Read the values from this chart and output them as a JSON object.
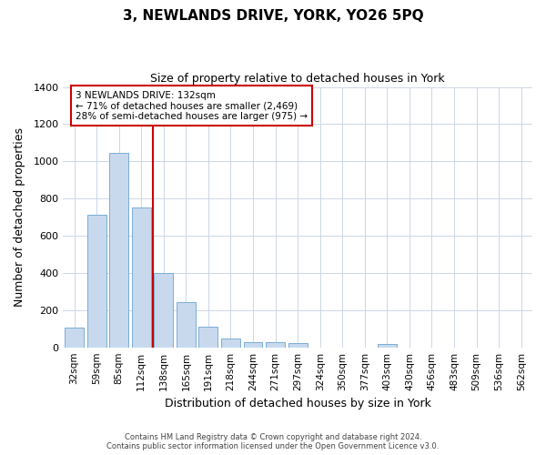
{
  "title": "3, NEWLANDS DRIVE, YORK, YO26 5PQ",
  "subtitle": "Size of property relative to detached houses in York",
  "xlabel": "Distribution of detached houses by size in York",
  "ylabel": "Number of detached properties",
  "bar_color": "#c8d9ee",
  "bar_edge_color": "#7aadd4",
  "categories": [
    "32sqm",
    "59sqm",
    "85sqm",
    "112sqm",
    "138sqm",
    "165sqm",
    "191sqm",
    "218sqm",
    "244sqm",
    "271sqm",
    "297sqm",
    "324sqm",
    "350sqm",
    "377sqm",
    "403sqm",
    "430sqm",
    "456sqm",
    "483sqm",
    "509sqm",
    "536sqm",
    "562sqm"
  ],
  "values": [
    105,
    715,
    1045,
    750,
    400,
    245,
    110,
    48,
    28,
    28,
    25,
    0,
    0,
    0,
    18,
    0,
    0,
    0,
    0,
    0,
    0
  ],
  "vline_x_idx": 4,
  "vline_color": "#cc0000",
  "annotation_line1": "3 NEWLANDS DRIVE: 132sqm",
  "annotation_line2": "← 71% of detached houses are smaller (2,469)",
  "annotation_line3": "28% of semi-detached houses are larger (975) →",
  "annotation_box_color": "#ffffff",
  "annotation_box_edge_color": "#cc0000",
  "ylim": [
    0,
    1400
  ],
  "yticks": [
    0,
    200,
    400,
    600,
    800,
    1000,
    1200,
    1400
  ],
  "footnote_line1": "Contains HM Land Registry data © Crown copyright and database right 2024.",
  "footnote_line2": "Contains public sector information licensed under the Open Government Licence v3.0.",
  "background_color": "#ffffff",
  "grid_color": "#ccd6e8"
}
